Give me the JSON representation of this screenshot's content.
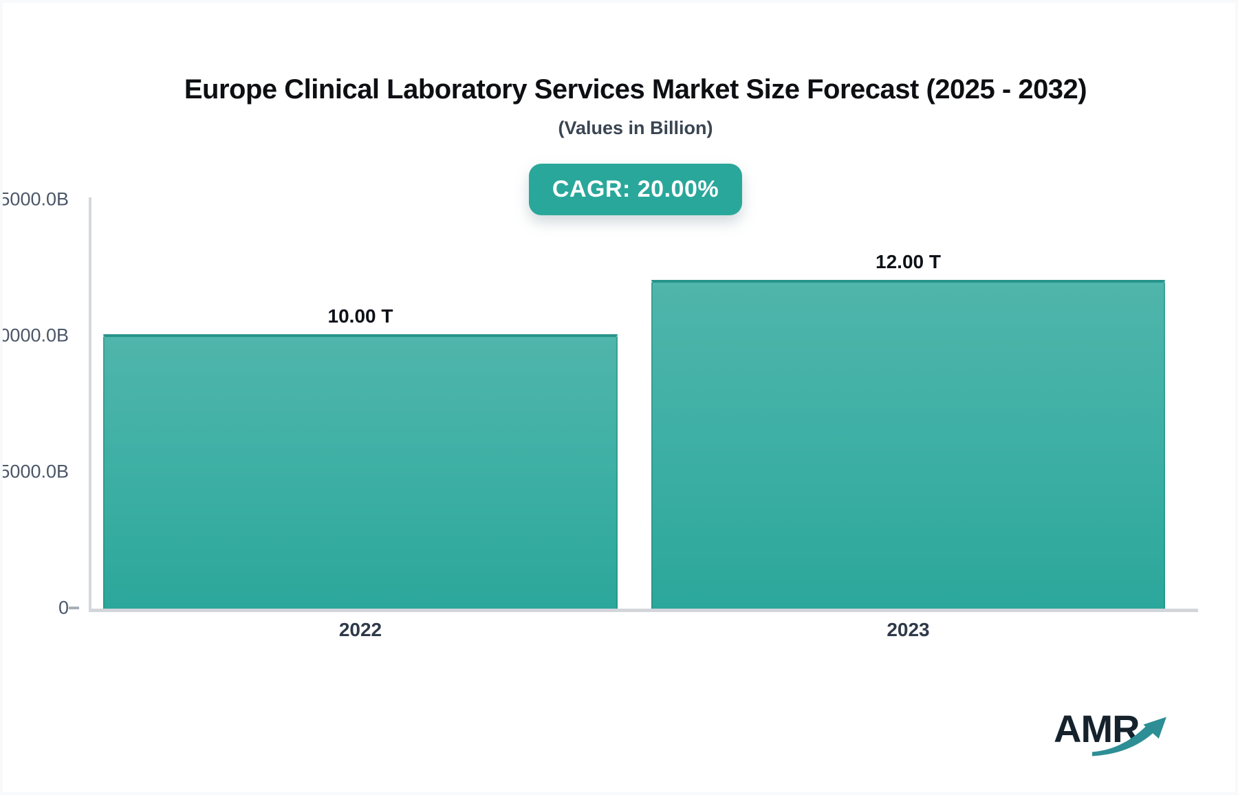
{
  "header": {
    "title": "Europe Clinical Laboratory Services Market Size Forecast (2025 - 2032)",
    "subtitle": "(Values in Billion)",
    "cagr_badge": "CAGR: 20.00%"
  },
  "chart_data": {
    "type": "bar",
    "title": "Europe Clinical Laboratory Services Market Size Forecast (2025 - 2032)",
    "subtitle": "(Values in Billion)",
    "cagr_percent": "20.00%",
    "categories": [
      "2022",
      "2023"
    ],
    "values_billion": [
      10000,
      12000
    ],
    "value_labels": [
      "10.00 T",
      "12.00 T"
    ],
    "xlabel": "",
    "ylabel": "",
    "ylim_billion": [
      0,
      15000
    ],
    "y_tick_interval_billion": 5000,
    "y_tick_labels_visible_top_to_bottom": [
      "5000.0B",
      "0000.0B",
      "5000.0B",
      "0"
    ],
    "grid": false,
    "legend": false,
    "bar_color_top": "#50b5ab",
    "bar_color_bottom": "#2ca79b",
    "accent_color": "#2aa79b"
  },
  "y_axis": {
    "ticks": [
      {
        "label": "5000.0B"
      },
      {
        "label": "0000.0B"
      },
      {
        "label": "5000.0B"
      },
      {
        "label": "0"
      }
    ]
  },
  "logo": {
    "text": "AMR",
    "icon": "growth-arrow",
    "text_color": "#15222c",
    "arrow_color": "#2d8e95"
  }
}
